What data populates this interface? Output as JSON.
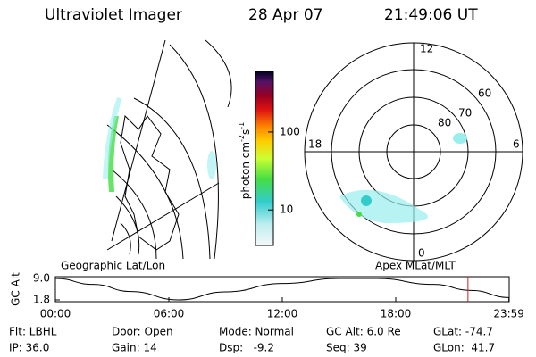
{
  "header": {
    "instrument": "Ultraviolet Imager",
    "date": "28 Apr 07",
    "time": "21:49:06 UT"
  },
  "colorbar": {
    "label": [
      "photon cm",
      "-2",
      "s",
      "-1"
    ],
    "scale": "log",
    "lim": [
      3.5,
      600
    ],
    "ticks": [
      10,
      100
    ]
  },
  "polar": {
    "ring_labels": [
      80,
      70,
      60
    ],
    "clock_labels": [
      12,
      6,
      18,
      0
    ]
  },
  "altitude": {
    "title_left": "Geographic Lat/Lon",
    "title_right": "Apex MLat/MLT",
    "ylabel": "GC Alt",
    "ylim": [
      1.8,
      9.0
    ],
    "yticks": [
      {
        "value": 9.0,
        "label": "9.0"
      },
      1.8
    ],
    "xlim": [
      0,
      24
    ],
    "xticks": [
      {
        "value": 0,
        "label": "00:00"
      },
      {
        "value": 6,
        "label": "06:00"
      },
      {
        "value": 12,
        "label": "12:00"
      },
      {
        "value": 18,
        "label": "18:00"
      },
      {
        "value": 23.983,
        "label": "23:59"
      }
    ],
    "x": [
      0,
      2,
      4,
      6.5,
      9,
      12,
      15,
      17,
      20,
      22,
      24
    ],
    "values": [
      9.0,
      7.0,
      4.6,
      1.8,
      4.5,
      7.3,
      9.0,
      9.0,
      7.0,
      5.0,
      2.6
    ],
    "marker": 21.82,
    "marker_color": "#cc2222"
  },
  "footer": [
    [
      "Flt: LBHL",
      "Door: Open",
      "Mode: Normal",
      "GC Alt: 6.0 Re",
      "GLat: -74.7"
    ],
    [
      "IP: 36.0",
      "Gain: 14",
      "Dsp:   -9.2",
      "Seq: 39",
      "GLon:  41.7"
    ]
  ]
}
